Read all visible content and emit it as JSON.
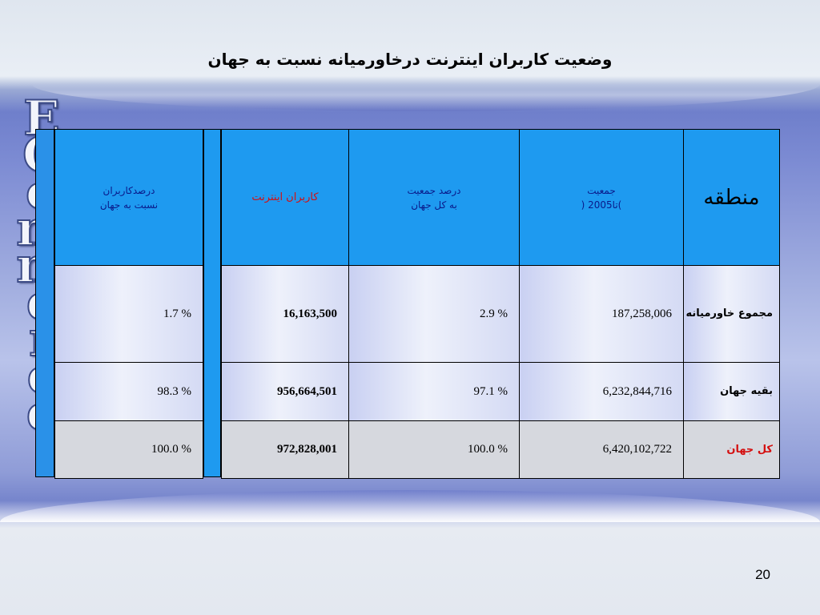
{
  "slide": {
    "title": "وضعیت کاربران اینترنت  درخاورمیانه نسبت به جهان",
    "side_word": [
      "E",
      "C",
      "o",
      "m",
      "m",
      "e",
      "r",
      "c",
      "e"
    ],
    "page_number": "20"
  },
  "table": {
    "headers": {
      "share_line1": "درصدکاربران",
      "share_line2": "نسبت به جهان",
      "users": "کاربران اینترنت",
      "pop_pct_line1": "درصد جمعیت",
      "pop_pct_line2": "به کل جهان",
      "population_line1": "جمعیت",
      "population_line2": ")تا2005 (",
      "region": "منطقه"
    },
    "rows": [
      {
        "region": "مجموع خاورمیانه",
        "population": "187,258,006",
        "pop_pct": "2.9 %",
        "users": "16,163,500",
        "share": "1.7 %"
      },
      {
        "region": "بقیه جهان",
        "population": "6,232,844,716",
        "pop_pct": "97.1 %",
        "users": "956,664,501",
        "share": "98.3 %"
      },
      {
        "region": "کل جهان",
        "population": "6,420,102,722",
        "pop_pct": "100.0 %",
        "users": "972,828,001",
        "share": "100.0 %"
      }
    ]
  },
  "colors": {
    "header_bg": "#1e9af0",
    "header_text": "#0a1a8a",
    "accent_red": "#d41010",
    "total_row_bg": "#d6d8de"
  }
}
